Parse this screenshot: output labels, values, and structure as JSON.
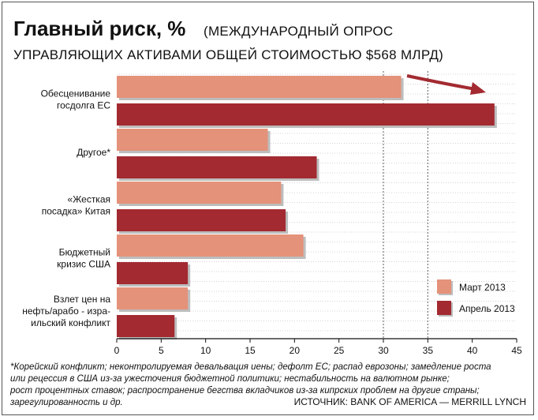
{
  "header": {
    "title": "Главный риск, %",
    "subtitle_line1": "(МЕЖДУНАРОДНЫЙ ОПРОС",
    "subtitle_line2": "УПРАВЛЯЮЩИХ АКТИВАМИ ОБЩЕЙ СТОИМОСТЬЮ $568 МЛРД)"
  },
  "chart_data": {
    "type": "bar",
    "orientation": "horizontal",
    "title": "Главный риск, %",
    "categories": [
      [
        "Обесценивание",
        "госдолга ЕС"
      ],
      [
        "Другое*"
      ],
      [
        "«Жесткая",
        "посадка» Китая"
      ],
      [
        "Бюджетный",
        "кризис США"
      ],
      [
        "Взлет цен на",
        "нефть/арабо - изра-",
        "ильский конфликт"
      ]
    ],
    "series": [
      {
        "name": "Март 2013",
        "color": "#e4927a",
        "values": [
          32,
          17,
          18.5,
          21,
          8
        ]
      },
      {
        "name": "Апрель 2013",
        "color": "#a32a31",
        "values": [
          42.5,
          22.5,
          19,
          8,
          6.5
        ]
      }
    ],
    "xlim": [
      0,
      45
    ],
    "xticks": [
      "0",
      "5",
      "10",
      "15",
      "20",
      "25",
      "30",
      "35",
      "40",
      "45"
    ],
    "reference_lines": [
      30,
      35
    ],
    "grid": true,
    "legend_position": "bottom-right",
    "annotation": "arrow pointing right above top bars"
  },
  "footer": {
    "note_lines": [
      "*Корейский конфликт; неконтролируемая девальвация иены; дефолт ЕС; распад еврозоны; замедление роста",
      "или рецессия в США из-за ужесточения бюджетной политики; нестабильность на валютном рынке;",
      "рост процентных ставок; распространение бегства вкладчиков из-за кипрских проблем на другие страны;",
      "зарегулированность и др."
    ],
    "source": "ИСТОЧНИК: BANK OF AMERICA — MERRILL LYNCH"
  }
}
